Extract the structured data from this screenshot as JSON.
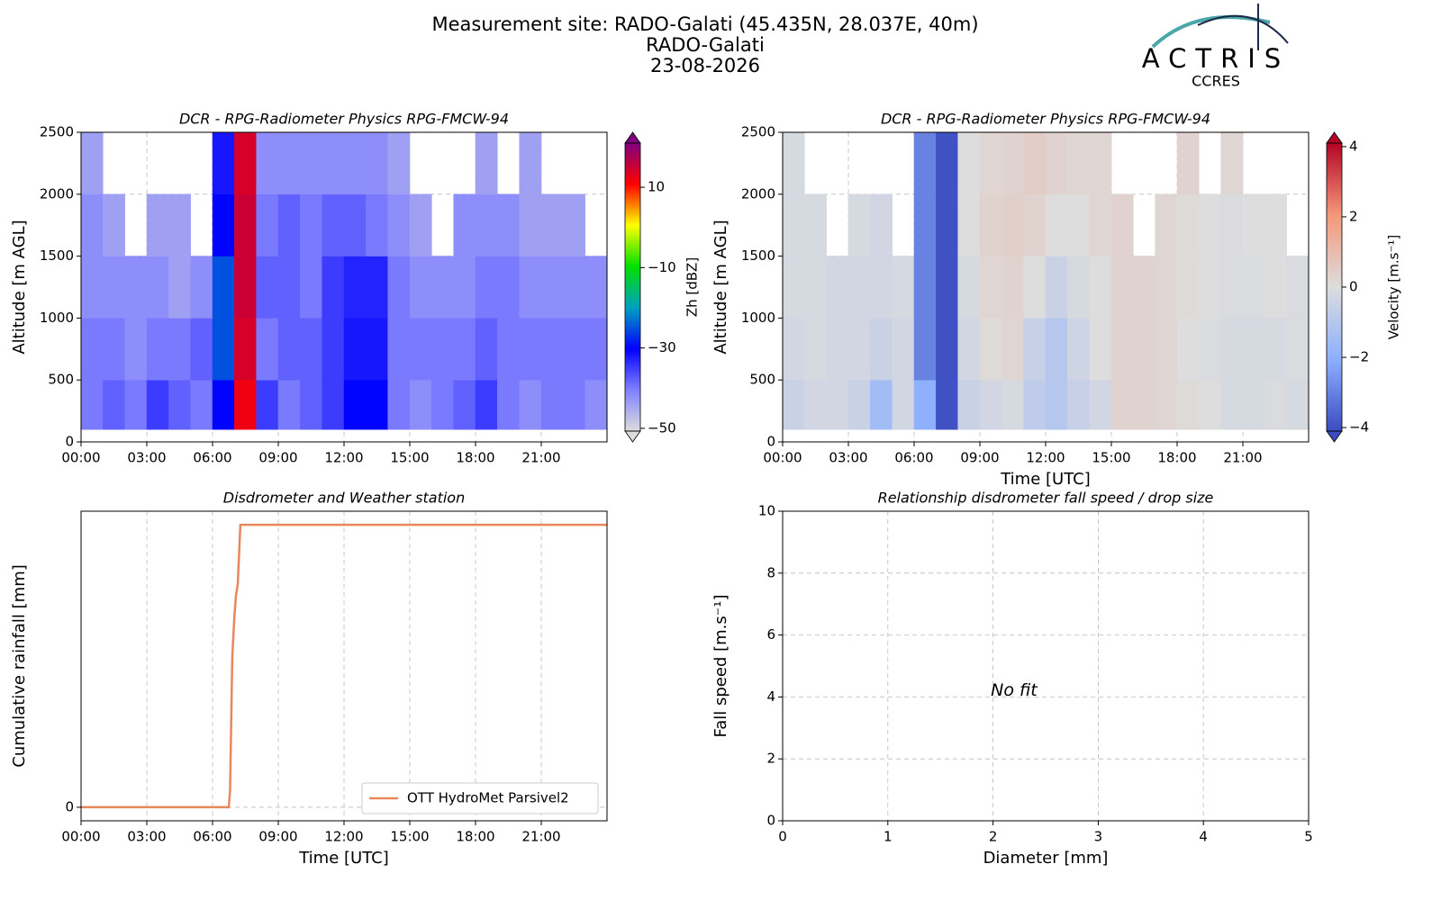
{
  "header": {
    "title_lines": [
      "Measurement site: RADO-Galati (45.435N, 28.037E, 40m)",
      "RADO-Galati",
      "23-08-2026"
    ],
    "logo": "ACTRIS",
    "logo_subtitle": "CCRES"
  },
  "chart_data": [
    {
      "type": "heatmap",
      "title": "DCR - RPG-Radiometer Physics RPG-FMCW-94",
      "ylabel": "Altitude [m AGL]",
      "xlim": [
        0,
        24
      ],
      "xticks": [
        {
          "value": 0,
          "label": "00:00"
        },
        {
          "value": 3,
          "label": "03:00"
        },
        {
          "value": 6,
          "label": "06:00"
        },
        {
          "value": 9,
          "label": "09:00"
        },
        {
          "value": 12,
          "label": "12:00"
        },
        {
          "value": 15,
          "label": "15:00"
        },
        {
          "value": 18,
          "label": "18:00"
        },
        {
          "value": 21,
          "label": "21:00"
        }
      ],
      "ylim": [
        0,
        2500
      ],
      "yticks": [
        0,
        500,
        1000,
        1500,
        2000,
        2500
      ],
      "grid": true,
      "x_edges": [
        0,
        1,
        2,
        3,
        4,
        5,
        6,
        7,
        8,
        9,
        10,
        11,
        12,
        13,
        14,
        15,
        16,
        17,
        18,
        19,
        20,
        21,
        22,
        23,
        24
      ],
      "y_edges": [
        100,
        500,
        1000,
        1500,
        2000,
        2500
      ],
      "z": [
        [
          -40,
          -38,
          -40,
          -35,
          -38,
          -40,
          -30,
          12,
          -35,
          -40,
          -38,
          -35,
          -30,
          -30,
          -40,
          -42,
          -40,
          -38,
          -35,
          -40,
          -42,
          -40,
          -40,
          -42
        ],
        [
          -40,
          -40,
          -42,
          -40,
          -40,
          -38,
          -25,
          14,
          -40,
          -38,
          -38,
          -35,
          -32,
          -32,
          -40,
          -40,
          -40,
          -40,
          -38,
          -40,
          -40,
          -40,
          -40,
          -40
        ],
        [
          -42,
          -42,
          -42,
          -42,
          -44,
          -42,
          -25,
          15,
          -38,
          -38,
          -40,
          -35,
          -33,
          -33,
          -40,
          -42,
          -42,
          -42,
          -40,
          -40,
          -42,
          -42,
          -42,
          -42
        ],
        [
          -42,
          -44,
          null,
          -44,
          -44,
          null,
          -30,
          15,
          -40,
          -38,
          -40,
          -38,
          -38,
          -40,
          -42,
          -44,
          null,
          -42,
          -42,
          -42,
          -44,
          -44,
          -44,
          null
        ],
        [
          -44,
          null,
          null,
          null,
          null,
          null,
          -32,
          14,
          -42,
          -42,
          -42,
          -42,
          -42,
          -42,
          -44,
          null,
          null,
          null,
          -44,
          null,
          -44,
          null,
          null,
          null
        ]
      ],
      "colorbar_label": "Zh [dBZ]",
      "zlim": [
        -50.7,
        21
      ],
      "zticks": [
        {
          "value": -50,
          "label": "−50"
        },
        {
          "value": -30,
          "label": "−30"
        },
        {
          "value": -10,
          "label": "−10"
        },
        10
      ],
      "colormap": [
        "#dcdcdc",
        "#8080ff",
        "#0000ff",
        "#00a0c0",
        "#00e000",
        "#ffff00",
        "#ff0000",
        "#800080"
      ]
    },
    {
      "type": "heatmap",
      "title": "DCR - RPG-Radiometer Physics RPG-FMCW-94",
      "ylabel": "Altitude [m AGL]",
      "xlabel": "Time [UTC]",
      "xlim": [
        0,
        24
      ],
      "xticks": [
        {
          "value": 0,
          "label": "00:00"
        },
        {
          "value": 3,
          "label": "03:00"
        },
        {
          "value": 6,
          "label": "06:00"
        },
        {
          "value": 9,
          "label": "09:00"
        },
        {
          "value": 12,
          "label": "12:00"
        },
        {
          "value": 15,
          "label": "15:00"
        },
        {
          "value": 18,
          "label": "18:00"
        },
        {
          "value": 21,
          "label": "21:00"
        }
      ],
      "ylim": [
        0,
        2500
      ],
      "yticks": [
        0,
        500,
        1000,
        1500,
        2000,
        2500
      ],
      "grid": true,
      "x_edges": [
        0,
        1,
        2,
        3,
        4,
        5,
        6,
        7,
        8,
        9,
        10,
        11,
        12,
        13,
        14,
        15,
        16,
        17,
        18,
        19,
        20,
        21,
        22,
        23,
        24
      ],
      "y_edges": [
        100,
        500,
        1000,
        1500,
        2000,
        2500
      ],
      "z": [
        [
          -0.5,
          -0.3,
          -0.3,
          -0.5,
          -1.5,
          -0.3,
          -2,
          -4,
          -0.5,
          -0.3,
          -0.2,
          -0.8,
          -1,
          -0.6,
          -0.3,
          0.3,
          0.3,
          0.2,
          0.1,
          0,
          -0.2,
          -0.2,
          -0.1,
          -0.2
        ],
        [
          -0.3,
          -0.2,
          -0.3,
          -0.3,
          -0.5,
          -0.3,
          -3,
          -4,
          -0.3,
          0.1,
          0.2,
          -0.6,
          -1,
          -0.4,
          0,
          0.3,
          0.3,
          0.2,
          0,
          -0.1,
          -0.2,
          -0.2,
          -0.2,
          -0.1
        ],
        [
          -0.2,
          -0.2,
          -0.3,
          -0.3,
          -0.3,
          -0.2,
          -3,
          -4,
          -0.2,
          0.2,
          0.3,
          0,
          -0.5,
          -0.2,
          0,
          0.3,
          0.3,
          0.2,
          0.1,
          0,
          -0.1,
          -0.1,
          0,
          -0.1
        ],
        [
          -0.2,
          -0.2,
          null,
          -0.2,
          -0.3,
          null,
          -3,
          -4,
          0,
          0.3,
          0.4,
          0.3,
          0,
          0,
          0.2,
          0.3,
          null,
          0.2,
          0.1,
          0,
          -0.1,
          0,
          0,
          null
        ],
        [
          -0.2,
          null,
          null,
          null,
          null,
          null,
          -3,
          -4,
          0,
          0.2,
          0.3,
          0.5,
          0.3,
          0.2,
          0.2,
          null,
          null,
          null,
          0.3,
          null,
          0.2,
          null,
          null,
          null
        ]
      ],
      "colorbar_label": "Velocity [m.s⁻¹]",
      "zlim": [
        -4.1,
        4.1
      ],
      "zticks": [
        {
          "value": -4,
          "label": "−4"
        },
        {
          "value": -2,
          "label": "−2"
        },
        0,
        2,
        4
      ],
      "colormap": [
        "#3b4cc0",
        "#8db0fe",
        "#dddddd",
        "#f4987a",
        "#b40426"
      ]
    },
    {
      "type": "line",
      "title": "Disdrometer and Weather station",
      "ylabel": "Cumulative rainfall [mm]",
      "xlabel": "Time [UTC]",
      "xlim": [
        0,
        24
      ],
      "xticks": [
        {
          "value": 0,
          "label": "00:00"
        },
        {
          "value": 3,
          "label": "03:00"
        },
        {
          "value": 6,
          "label": "06:00"
        },
        {
          "value": 9,
          "label": "09:00"
        },
        {
          "value": 12,
          "label": "12:00"
        },
        {
          "value": 15,
          "label": "15:00"
        },
        {
          "value": 18,
          "label": "18:00"
        },
        {
          "value": 21,
          "label": "21:00"
        }
      ],
      "ylim": [
        -0.48,
        10.48
      ],
      "yticks": [
        0
      ],
      "grid": true,
      "legend": "lower right",
      "x": [
        0,
        6.74,
        6.8,
        6.9,
        7.0,
        7.07,
        7.15,
        7.27,
        24
      ],
      "series": [
        {
          "name": "OTT HydroMet Parsivel2",
          "color": "#e8875e",
          "values": [
            0,
            0,
            0.6,
            5.3,
            6.8,
            7.5,
            7.9,
            10,
            10
          ]
        }
      ]
    },
    {
      "type": "scatter",
      "title": "Relationship disdrometer fall speed / drop size",
      "ylabel": "Fall speed [m.s⁻¹]",
      "xlabel": "Diameter [mm]",
      "xlim": [
        0,
        5
      ],
      "xticks": [
        0,
        1,
        2,
        3,
        4,
        5
      ],
      "ylim": [
        0,
        10
      ],
      "yticks": [
        0,
        2,
        4,
        6,
        8,
        10
      ],
      "grid": true,
      "annotation": "No fit",
      "x": [],
      "values": []
    }
  ]
}
